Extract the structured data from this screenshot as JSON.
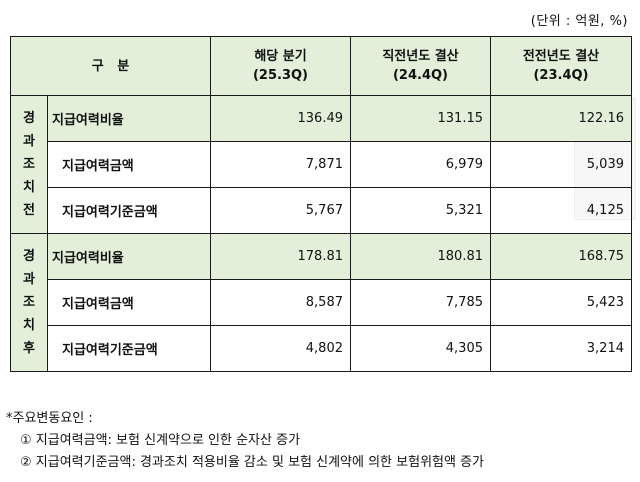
{
  "unit_label": "(단위 : 억원, %)",
  "header": {
    "category": "구   분",
    "columns": [
      {
        "line1": "해당 분기",
        "line2": "(25.3Q)"
      },
      {
        "line1": "직전년도 결산",
        "line2": "(24.4Q)"
      },
      {
        "line1": "전전년도 결산",
        "line2": "(23.4Q)"
      }
    ]
  },
  "groups": [
    {
      "label": "경과조치전",
      "rows": [
        {
          "item": "지급여력비율",
          "values": [
            "136.49",
            "131.15",
            "122.16"
          ]
        },
        {
          "item": "지급여력금액",
          "values": [
            "7,871",
            "6,979",
            "5,039"
          ]
        },
        {
          "item": "지급여력기준금액",
          "values": [
            "5,767",
            "5,321",
            "4,125"
          ]
        }
      ]
    },
    {
      "label": "경과조치후",
      "rows": [
        {
          "item": "지급여력비율",
          "values": [
            "178.81",
            "180.81",
            "168.75"
          ]
        },
        {
          "item": "지급여력금액",
          "values": [
            "8,587",
            "7,785",
            "5,423"
          ]
        },
        {
          "item": "지급여력기준금액",
          "values": [
            "4,802",
            "4,305",
            "3,214"
          ]
        }
      ]
    }
  ],
  "notes": {
    "title": "*주요변동요인 :",
    "items": [
      "① 지급여력금액: 보험 신계약으로 인한 순자산 증가",
      "② 지급여력기준금액: 경과조치 적용비율 감소 및 보험 신계약에 의한 보험위험액 증가"
    ]
  }
}
